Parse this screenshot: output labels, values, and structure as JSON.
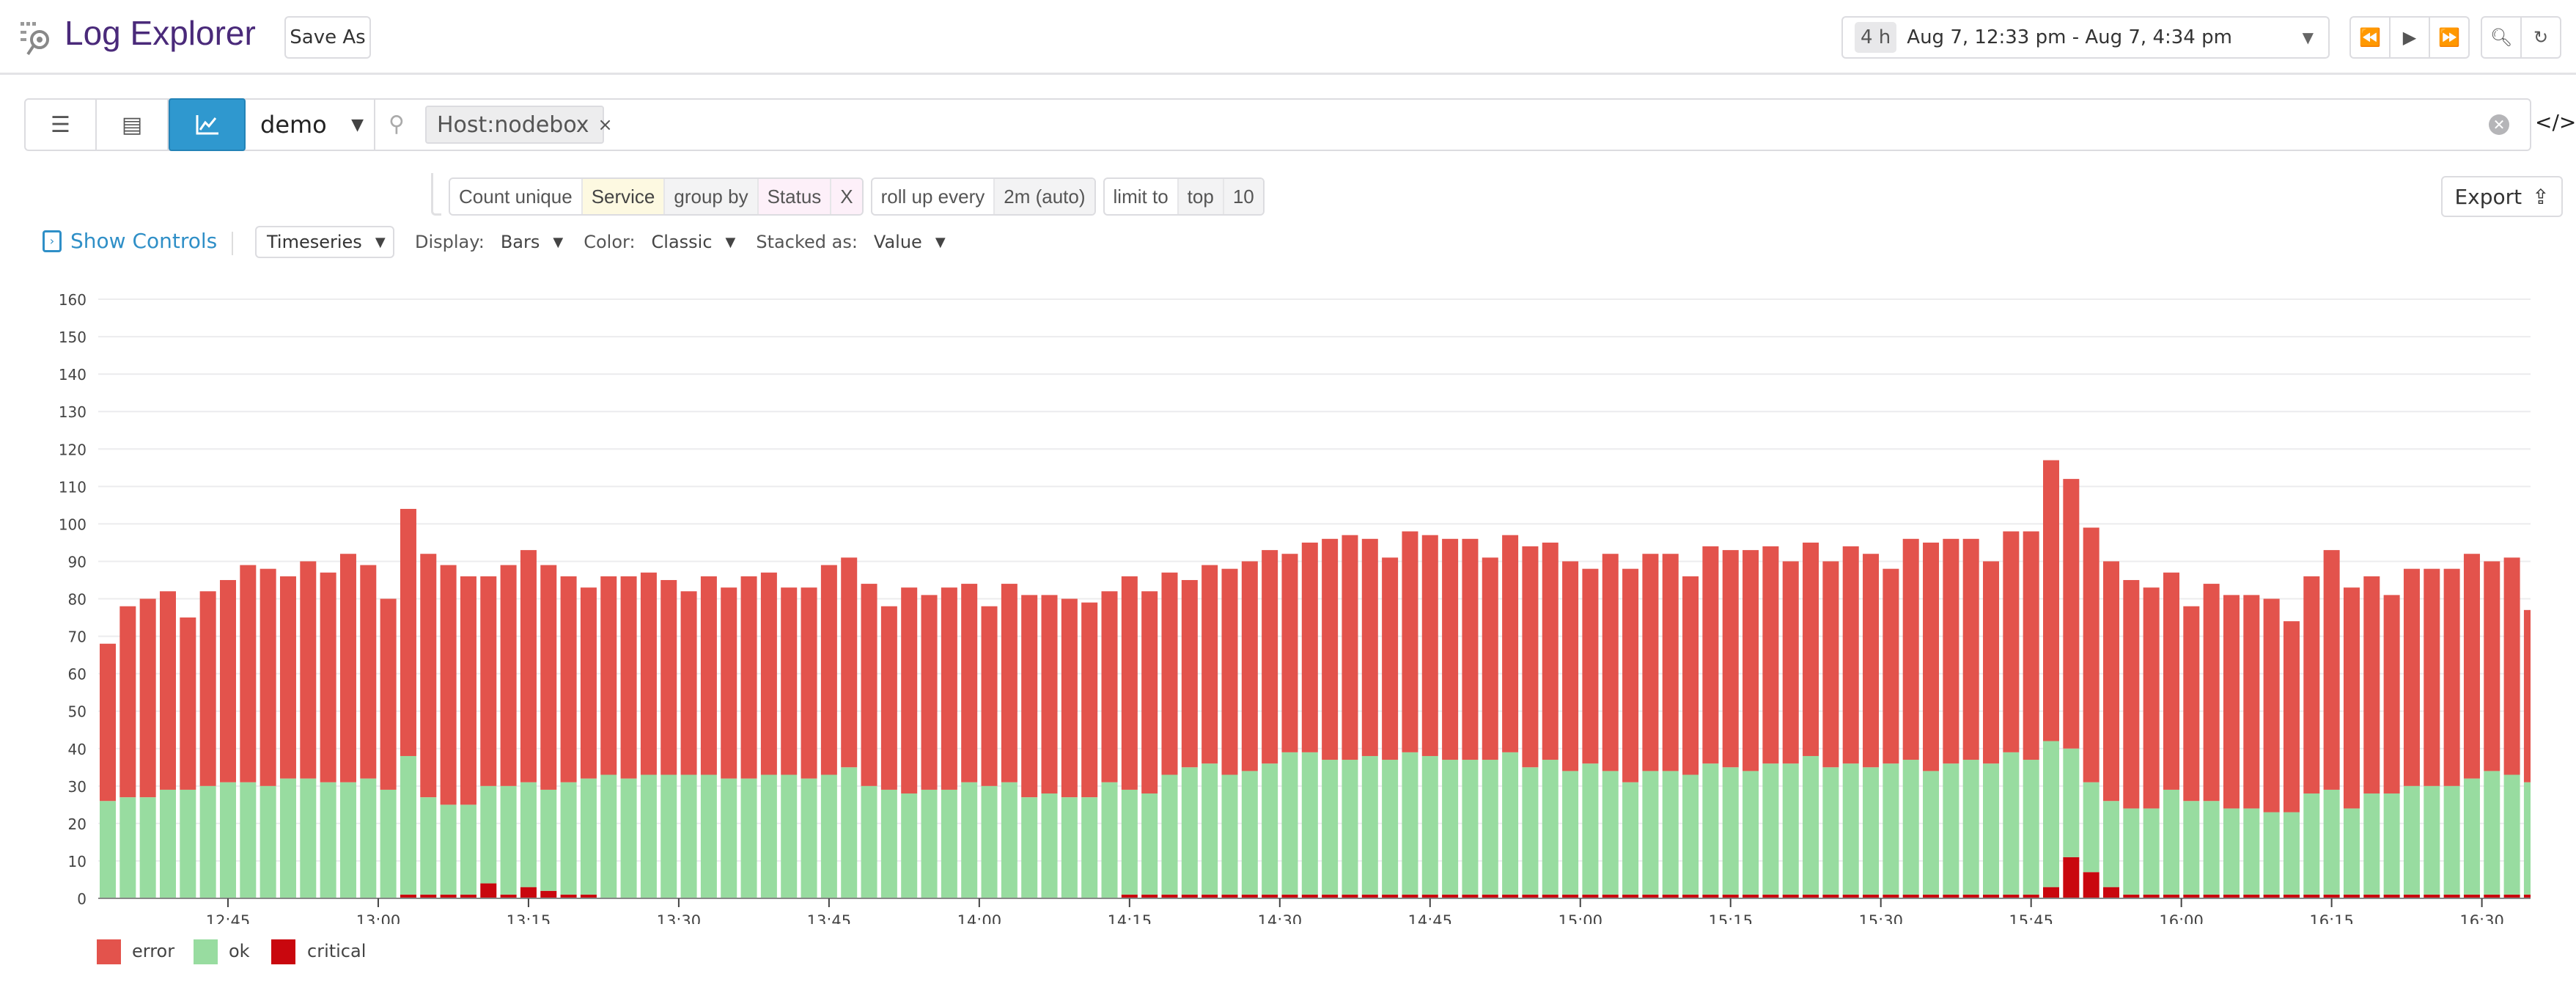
{
  "header": {
    "title": "Log Explorer",
    "save_as": "Save As",
    "time_badge": "4 h",
    "time_range": "Aug 7, 12:33 pm - Aug 7, 4:34 pm"
  },
  "search": {
    "view": "demo",
    "chip": "Host:nodebox",
    "chip_remove": "×"
  },
  "query": {
    "count": "Count unique",
    "field": "Service",
    "group_by": "group by",
    "group_field": "Status",
    "remove": "X",
    "rollup": "roll up every",
    "rollup_value": "2m (auto)",
    "limit": "limit to",
    "limit_dir": "top",
    "limit_n": "10",
    "export": "Export"
  },
  "controls": {
    "show": "Show Controls",
    "type": "Timeseries",
    "display_label": "Display:",
    "display": "Bars",
    "color_label": "Color:",
    "color": "Classic",
    "stacked_label": "Stacked as:",
    "stacked": "Value"
  },
  "chart_data": {
    "type": "bar",
    "stacked": true,
    "grid": true,
    "legend": "bottom-left",
    "ylim": [
      0,
      160
    ],
    "y_ticks": [
      "0",
      "10",
      "20",
      "30",
      "40",
      "50",
      "60",
      "70",
      "80",
      "90",
      "100",
      "110",
      "120",
      "130",
      "140",
      "150",
      "160"
    ],
    "x_ticks": [
      "12:45",
      "13:00",
      "13:15",
      "13:30",
      "13:45",
      "14:00",
      "14:15",
      "14:30",
      "14:45",
      "15:00",
      "15:15",
      "15:30",
      "15:45",
      "16:00",
      "16:15",
      "16:30"
    ],
    "x": [
      "12:33",
      "12:35",
      "12:37",
      "12:39",
      "12:41",
      "12:43",
      "12:45",
      "12:47",
      "12:49",
      "12:51",
      "12:53",
      "12:55",
      "12:57",
      "12:59",
      "13:01",
      "13:03",
      "13:05",
      "13:07",
      "13:09",
      "13:11",
      "13:13",
      "13:15",
      "13:17",
      "13:19",
      "13:21",
      "13:23",
      "13:25",
      "13:27",
      "13:29",
      "13:31",
      "13:33",
      "13:35",
      "13:37",
      "13:39",
      "13:41",
      "13:43",
      "13:45",
      "13:47",
      "13:49",
      "13:51",
      "13:53",
      "13:55",
      "13:57",
      "13:59",
      "14:01",
      "14:03",
      "14:05",
      "14:07",
      "14:09",
      "14:11",
      "14:13",
      "14:15",
      "14:17",
      "14:19",
      "14:21",
      "14:23",
      "14:25",
      "14:27",
      "14:29",
      "14:31",
      "14:33",
      "14:35",
      "14:37",
      "14:39",
      "14:41",
      "14:43",
      "14:45",
      "14:47",
      "14:49",
      "14:51",
      "14:53",
      "14:55",
      "14:57",
      "14:59",
      "15:01",
      "15:03",
      "15:05",
      "15:07",
      "15:09",
      "15:11",
      "15:13",
      "15:15",
      "15:17",
      "15:19",
      "15:21",
      "15:23",
      "15:25",
      "15:27",
      "15:29",
      "15:31",
      "15:33",
      "15:35",
      "15:37",
      "15:39",
      "15:41",
      "15:43",
      "15:45",
      "15:47",
      "15:49",
      "15:51",
      "15:53",
      "15:55",
      "15:57",
      "15:59",
      "16:01",
      "16:03",
      "16:05",
      "16:07",
      "16:09",
      "16:11",
      "16:13",
      "16:15",
      "16:17",
      "16:19",
      "16:21",
      "16:23",
      "16:25",
      "16:27",
      "16:29",
      "16:31",
      "16:33",
      "16:35"
    ],
    "series": [
      {
        "name": "critical",
        "color": "#c9070e",
        "values": [
          0,
          0,
          0,
          0,
          0,
          0,
          0,
          0,
          0,
          0,
          0,
          0,
          0,
          0,
          0,
          1,
          1,
          1,
          1,
          4,
          1,
          3,
          2,
          1,
          1,
          0,
          0,
          0,
          0,
          0,
          0,
          0,
          0,
          0,
          0,
          0,
          0,
          0,
          0,
          0,
          0,
          0,
          0,
          0,
          0,
          0,
          0,
          0,
          0,
          0,
          0,
          1,
          1,
          1,
          1,
          1,
          1,
          1,
          1,
          1,
          1,
          1,
          1,
          1,
          1,
          1,
          1,
          1,
          1,
          1,
          1,
          1,
          1,
          1,
          1,
          1,
          1,
          1,
          1,
          1,
          1,
          1,
          1,
          1,
          1,
          1,
          1,
          1,
          1,
          1,
          1,
          1,
          1,
          1,
          1,
          1,
          1,
          3,
          11,
          7,
          3,
          1,
          1,
          1,
          1,
          1,
          1,
          1,
          1,
          1,
          1,
          1,
          1,
          1,
          1,
          1,
          1,
          1,
          1,
          1,
          1,
          1
        ]
      },
      {
        "name": "ok",
        "color": "#98dca0",
        "values": [
          26,
          27,
          27,
          29,
          29,
          30,
          31,
          31,
          30,
          32,
          32,
          31,
          31,
          32,
          29,
          37,
          26,
          24,
          24,
          26,
          29,
          28,
          27,
          30,
          31,
          33,
          32,
          33,
          33,
          33,
          33,
          32,
          32,
          33,
          33,
          32,
          33,
          35,
          30,
          29,
          28,
          29,
          29,
          31,
          30,
          31,
          27,
          28,
          27,
          27,
          31,
          28,
          27,
          32,
          34,
          35,
          32,
          33,
          35,
          38,
          38,
          36,
          36,
          37,
          36,
          38,
          37,
          36,
          36,
          36,
          38,
          34,
          36,
          33,
          35,
          33,
          30,
          33,
          33,
          32,
          35,
          34,
          33,
          35,
          35,
          37,
          34,
          35,
          34,
          35,
          36,
          33,
          35,
          36,
          35,
          38,
          36,
          39,
          29,
          24,
          23,
          23,
          23,
          28,
          25,
          25,
          23,
          23,
          22,
          22,
          27,
          28,
          23,
          27,
          27,
          29,
          29,
          29,
          31,
          33,
          32,
          30
        ]
      },
      {
        "name": "error",
        "color": "#e3534c",
        "values": [
          42,
          51,
          53,
          53,
          46,
          52,
          54,
          58,
          58,
          54,
          58,
          56,
          61,
          57,
          51,
          66,
          65,
          64,
          61,
          56,
          59,
          62,
          60,
          55,
          51,
          53,
          54,
          54,
          52,
          49,
          53,
          51,
          54,
          54,
          50,
          51,
          56,
          56,
          54,
          49,
          55,
          52,
          54,
          53,
          48,
          53,
          54,
          53,
          53,
          52,
          51,
          57,
          54,
          54,
          50,
          53,
          55,
          56,
          57,
          53,
          56,
          59,
          60,
          58,
          54,
          59,
          59,
          59,
          59,
          54,
          58,
          59,
          58,
          56,
          52,
          58,
          57,
          58,
          58,
          53,
          58,
          58,
          59,
          58,
          54,
          57,
          55,
          58,
          57,
          52,
          59,
          61,
          60,
          59,
          54,
          59,
          61,
          75,
          72,
          68,
          64,
          61,
          59,
          58,
          52,
          58,
          57,
          57,
          57,
          51,
          58,
          64,
          59,
          58,
          53,
          58,
          58,
          58,
          60,
          56,
          58,
          46
        ]
      }
    ],
    "legend_order": [
      "error",
      "ok",
      "critical"
    ]
  }
}
